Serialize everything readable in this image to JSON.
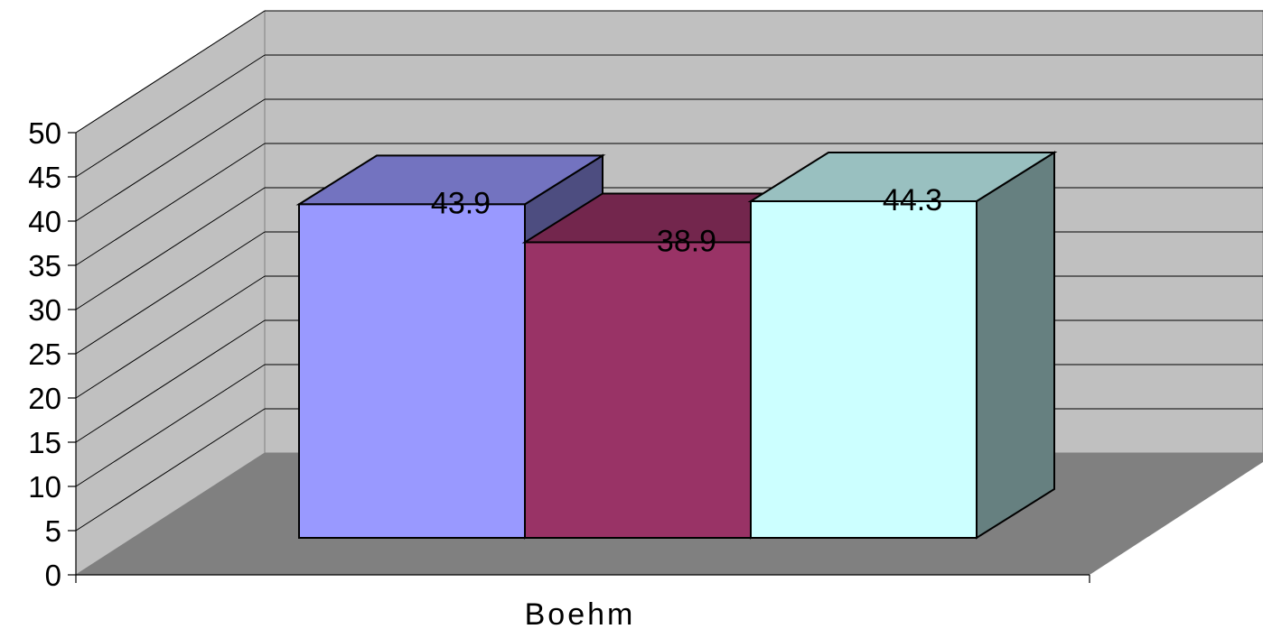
{
  "chart_data": {
    "type": "bar",
    "style": "3d",
    "categories": [
      "Boehm"
    ],
    "series": [
      {
        "values": [
          43.9
        ],
        "color": "#9999ff",
        "top_color": "#7373c0",
        "side_color": "#4d4d80"
      },
      {
        "values": [
          38.9
        ],
        "color": "#993366",
        "top_color": "#73264d",
        "side_color": "#4d1a33"
      },
      {
        "values": [
          44.3
        ],
        "color": "#ccffff",
        "top_color": "#99c0c0",
        "side_color": "#668080"
      }
    ],
    "data_labels": [
      "43.9",
      "38.9",
      "44.3"
    ],
    "ylim": [
      0,
      50
    ],
    "yticks": [
      "0",
      "5",
      "10",
      "15",
      "20",
      "25",
      "30",
      "35",
      "40",
      "45",
      "50"
    ],
    "xlabel": "",
    "ylabel": "",
    "grid": true,
    "legend": "none",
    "colors": {
      "back_wall": "#c0c0c0",
      "side_wall": "#c0c0c0",
      "floor": "#808080",
      "gridline": "#000000"
    }
  }
}
